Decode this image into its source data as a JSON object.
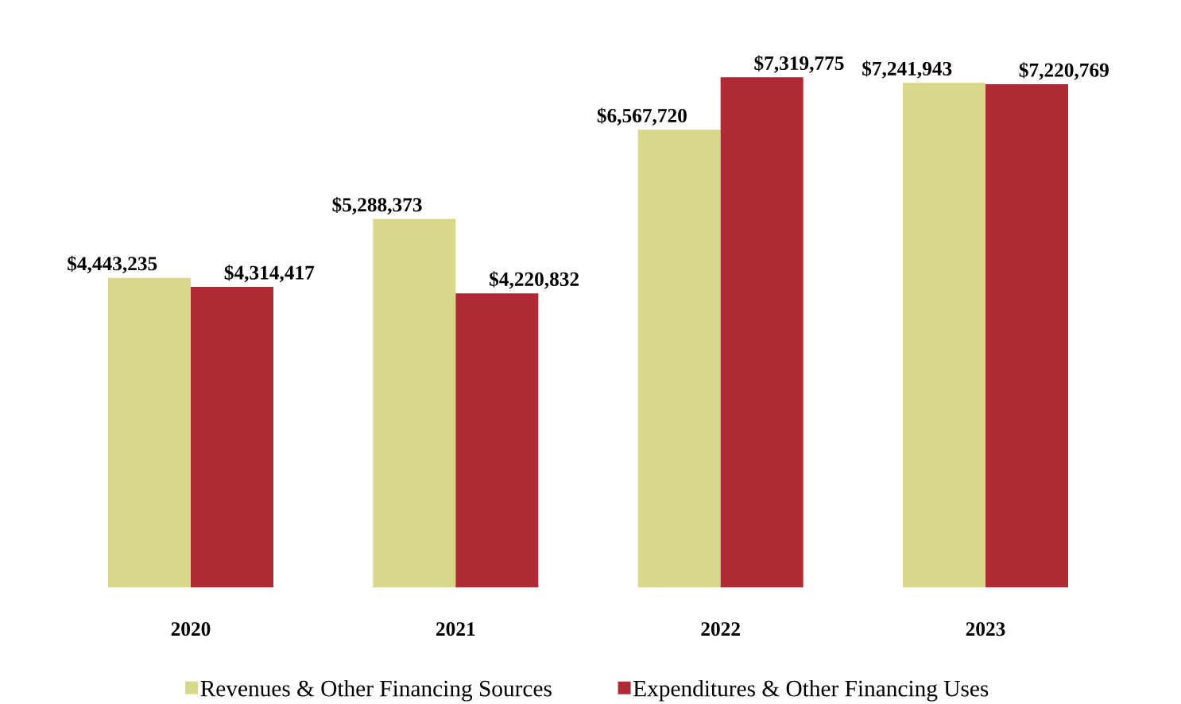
{
  "chart_data": {
    "type": "bar",
    "categories": [
      "2020",
      "2021",
      "2022",
      "2023"
    ],
    "legend": "bottom",
    "series": [
      {
        "name": "Revenues & Other Financing Sources",
        "color": "#d8d88a",
        "values": [
          4443235,
          5288373,
          6567720,
          7241943
        ],
        "value_labels": [
          "$4,443,235",
          "$5,288,373",
          "$6,567,720",
          "$7,241,943"
        ]
      },
      {
        "name": "Expenditures & Other Financing Uses",
        "color": "#b02a36",
        "values": [
          4314417,
          4220832,
          7319775,
          7220769
        ],
        "value_labels": [
          "$4,314,417",
          "$4,220,832",
          "$7,319,775",
          "$7,220,769"
        ]
      }
    ]
  }
}
